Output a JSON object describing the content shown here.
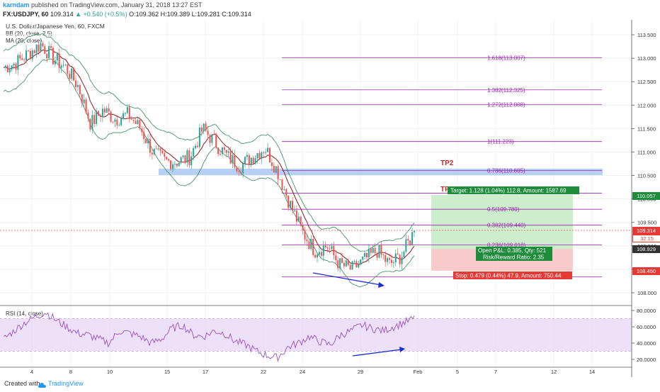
{
  "header": {
    "author": "karndam",
    "published": "published on TradingView.com, January 31, 2018 13:27 EST",
    "symbol": "FX:USDJPY, 60",
    "last": "109.314",
    "change": "▲ +0.540 (+0.5%)",
    "ohlc": "O:109.362  H:109.389  L:109.281  C:109.314",
    "title": "U.S. Dollar/Japanese Yen, 60, FXCM",
    "bb_label": "BB (20, close, 2.5)",
    "ma_label": "MA (20, close)",
    "rsi_label": "RSI (14, close)"
  },
  "footer": {
    "created_with": "Created with",
    "brand": "TradingView"
  },
  "colors": {
    "fib": "#9c27b0",
    "zone": "#a9c8f5",
    "target": "#c8ecc8",
    "stop": "#f8c4c4",
    "up": "#26a69a",
    "down": "#ef5350",
    "bb": "#2e8b57",
    "ma": "#8b1a1a",
    "rsi": "#9c4dcc",
    "arrow": "#1a2bd6"
  },
  "chart_data": [
    {
      "type": "line",
      "title": "U.S. Dollar/Japanese Yen, 60, FXCM",
      "y_axis": {
        "ylim": [
          107.85,
          113.65
        ],
        "ticks": [
          "113.500",
          "113.000",
          "112.500",
          "112.000",
          "111.500",
          "111.000",
          "110.500",
          "110.000",
          "109.500",
          "109.000",
          "108.500",
          "108.000"
        ]
      },
      "x_axis": {
        "ticks": [
          "4",
          "8",
          "10",
          "15",
          "17",
          "22",
          "24",
          "29",
          "Feb",
          "5",
          "7",
          "12",
          "14"
        ]
      },
      "series": [
        {
          "name": "",
          "values": [
            112.8,
            112.9,
            113.1,
            113.3,
            113.0,
            112.8,
            112.4,
            111.6,
            111.9,
            111.7,
            111.8,
            111.5,
            111.0,
            110.8,
            110.8,
            110.9,
            111.5,
            111.2,
            110.9,
            110.7,
            110.9,
            111.1,
            110.6,
            109.9,
            109.3,
            108.9,
            109.0,
            108.6,
            108.5,
            108.7,
            108.9,
            108.6,
            108.8,
            109.314
          ]
        }
      ],
      "fib_levels": [
        {
          "ratio": "1.618",
          "price": "113.007",
          "label": "1.618(113.007)"
        },
        {
          "ratio": "1.382",
          "price": "112.325",
          "label": "1.382(112.325)"
        },
        {
          "ratio": "1.272",
          "price": "112.008",
          "label": "1.272(112.008)"
        },
        {
          "ratio": "1",
          "price": "111.223",
          "label": "1(111.223)"
        },
        {
          "ratio": "0.786",
          "price": "110.605",
          "label": "0.786(110.605)"
        },
        {
          "ratio": "0.618",
          "price": "110.124",
          "label": ""
        },
        {
          "ratio": "0.5",
          "price": "109.780",
          "label": "0.5(109.780)"
        },
        {
          "ratio": "0.382",
          "price": "109.440",
          "label": "0.382(109.440)"
        },
        {
          "ratio": "0.236",
          "price": "109.018",
          "label": "0.236(109.018)"
        },
        {
          "ratio": "0",
          "price": "108.340",
          "label": ""
        }
      ],
      "annotations": {
        "tp2": "TP2",
        "tp1": "TP1",
        "target": "Target: 1.128 (1.04%) 112.8, Amount: 1587.69",
        "open_pl": "Open P&L: 0.385, Qty: 521",
        "risk_reward": "Risk/Reward Ratio: 2.35",
        "stop": "Stop: 0.479 (0.44%) 47.9, Amount: 750.44"
      },
      "price_tags": [
        {
          "value": "110.057",
          "kind": "target"
        },
        {
          "value": "109.314",
          "kind": "last"
        },
        {
          "value": "32:15",
          "kind": "timer"
        },
        {
          "value": "108.929",
          "kind": "entry"
        },
        {
          "value": "108.450",
          "kind": "stop"
        }
      ]
    },
    {
      "type": "line",
      "title": "RSI (14, close)",
      "y_axis": {
        "ylim": [
          15,
          82
        ],
        "ticks": [
          "80.0000",
          "60.0000",
          "40.0000",
          "20.0000"
        ]
      },
      "series": [
        {
          "name": "",
          "values": [
            45,
            55,
            65,
            72,
            78,
            68,
            60,
            52,
            50,
            45,
            40,
            55,
            52,
            48,
            40,
            45,
            58,
            62,
            50,
            48,
            55,
            52,
            42,
            38,
            30,
            25,
            22,
            35,
            40,
            48,
            42,
            38,
            50,
            55,
            62,
            58,
            55,
            60,
            65,
            70
          ]
        }
      ],
      "band": [
        30,
        70
      ]
    }
  ]
}
